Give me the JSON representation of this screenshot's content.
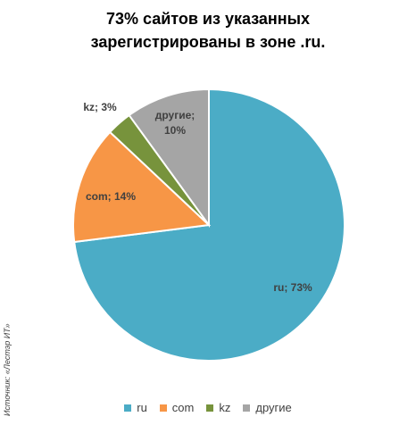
{
  "title_line1": "73% сайтов из указанных",
  "title_line2": "зарегистрированы в зоне .ru.",
  "source": "Источник: «Лестэр ИТ»",
  "chart_data": {
    "type": "pie",
    "title": "73% сайтов из указанных зарегистрированы в зоне .ru.",
    "categories": [
      "ru",
      "com",
      "kz",
      "другие"
    ],
    "values": [
      73,
      14,
      3,
      10
    ],
    "labels": [
      "ru; 73%",
      "com; 14%",
      "kz; 3%",
      "другие;\n10%"
    ],
    "colors": [
      "#4BACC6",
      "#F79646",
      "#77933C",
      "#A5A5A5"
    ],
    "legend_position": "bottom"
  }
}
